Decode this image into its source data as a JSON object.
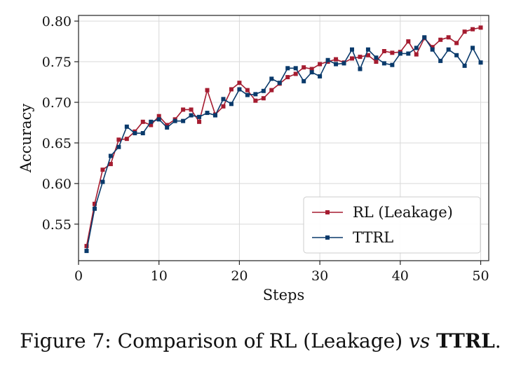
{
  "chart_data": {
    "type": "line",
    "xlabel": "Steps",
    "ylabel": "Accuracy",
    "xlim": [
      0,
      51
    ],
    "ylim": [
      0.505,
      0.807
    ],
    "xticks": [
      0,
      10,
      20,
      30,
      40,
      50
    ],
    "yticks": [
      0.55,
      0.6,
      0.65,
      0.7,
      0.75,
      0.8
    ],
    "ytick_labels": [
      "0.55",
      "0.60",
      "0.65",
      "0.70",
      "0.75",
      "0.80"
    ],
    "grid": true,
    "legend_position": "lower-right",
    "x": [
      1,
      2,
      3,
      4,
      5,
      6,
      7,
      8,
      9,
      10,
      11,
      12,
      13,
      14,
      15,
      16,
      17,
      18,
      19,
      20,
      21,
      22,
      23,
      24,
      25,
      26,
      27,
      28,
      29,
      30,
      31,
      32,
      33,
      34,
      35,
      36,
      37,
      38,
      39,
      40,
      41,
      42,
      43,
      44,
      45,
      46,
      47,
      48,
      49,
      50
    ],
    "series": [
      {
        "name": "RL (Leakage)",
        "color": "#a51c30",
        "values": [
          0.523,
          0.575,
          0.617,
          0.624,
          0.654,
          0.655,
          0.664,
          0.676,
          0.672,
          0.683,
          0.672,
          0.679,
          0.691,
          0.691,
          0.676,
          0.715,
          0.685,
          0.695,
          0.716,
          0.724,
          0.715,
          0.702,
          0.705,
          0.715,
          0.723,
          0.731,
          0.735,
          0.743,
          0.741,
          0.747,
          0.75,
          0.753,
          0.749,
          0.754,
          0.756,
          0.758,
          0.75,
          0.763,
          0.761,
          0.762,
          0.775,
          0.759,
          0.779,
          0.768,
          0.777,
          0.78,
          0.773,
          0.787,
          0.79,
          0.792
        ]
      },
      {
        "name": "TTRL",
        "color": "#0a3a6b",
        "values": [
          0.517,
          0.569,
          0.602,
          0.634,
          0.645,
          0.67,
          0.662,
          0.662,
          0.676,
          0.679,
          0.669,
          0.677,
          0.677,
          0.684,
          0.682,
          0.687,
          0.684,
          0.704,
          0.698,
          0.716,
          0.709,
          0.71,
          0.714,
          0.729,
          0.724,
          0.742,
          0.742,
          0.726,
          0.737,
          0.732,
          0.752,
          0.747,
          0.748,
          0.765,
          0.741,
          0.765,
          0.755,
          0.748,
          0.746,
          0.76,
          0.76,
          0.767,
          0.78,
          0.765,
          0.751,
          0.765,
          0.758,
          0.745,
          0.767,
          0.749
        ]
      }
    ]
  },
  "caption": {
    "prefix": "Figure 7: Comparison of RL (Leakage) ",
    "vs": "vs",
    "space": " ",
    "ttrl": "TTRL",
    "suffix": "."
  }
}
